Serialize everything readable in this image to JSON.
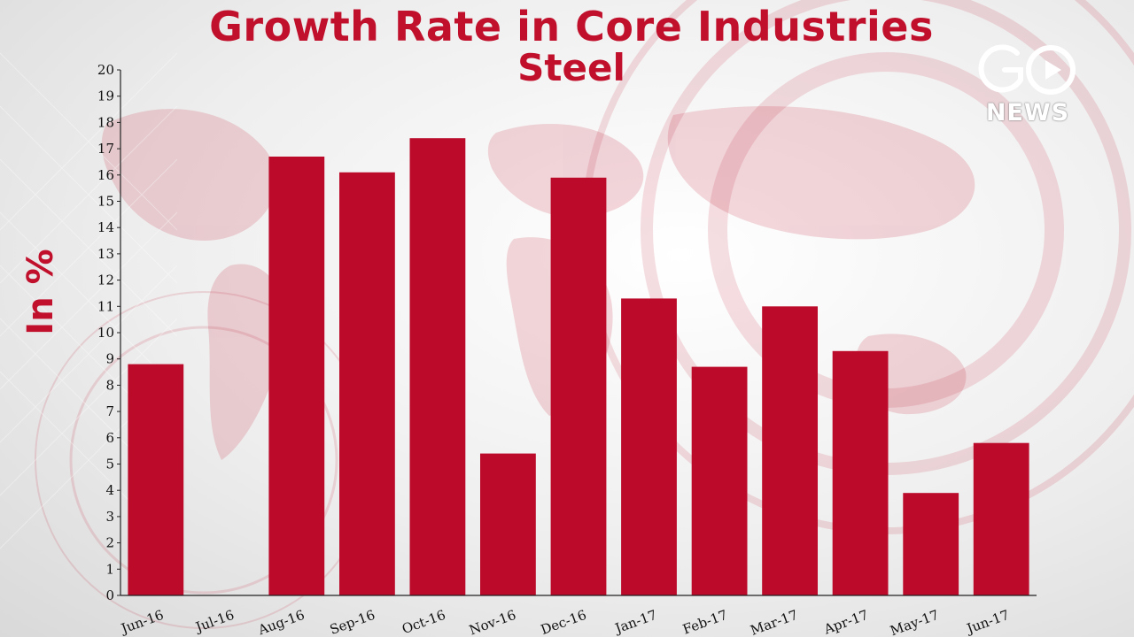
{
  "chart_data": {
    "type": "bar",
    "title": "Growth Rate in Core Industries",
    "subtitle": "Steel",
    "ylabel": "In %",
    "xlabel": "",
    "ylim": [
      0,
      20
    ],
    "yticks": [
      0,
      1,
      2,
      3,
      4,
      5,
      6,
      7,
      8,
      9,
      10,
      11,
      12,
      13,
      14,
      15,
      16,
      17,
      18,
      19,
      20
    ],
    "categories": [
      "Jun-16",
      "Jul-16",
      "Aug-16",
      "Sep-16",
      "Oct-16",
      "Nov-16",
      "Dec-16",
      "Jan-17",
      "Feb-17",
      "Mar-17",
      "Apr-17",
      "May-17",
      "Jun-17"
    ],
    "values": [
      8.8,
      0,
      16.7,
      16.1,
      17.4,
      5.4,
      15.9,
      11.3,
      8.7,
      11.0,
      9.3,
      3.9,
      5.8
    ],
    "bar_color": "#bb0a2a",
    "grid": false
  },
  "logo": {
    "brand": "GO",
    "sub": "NEWS"
  },
  "colors": {
    "title": "#c0102c",
    "accent": "#bb0a2a"
  }
}
